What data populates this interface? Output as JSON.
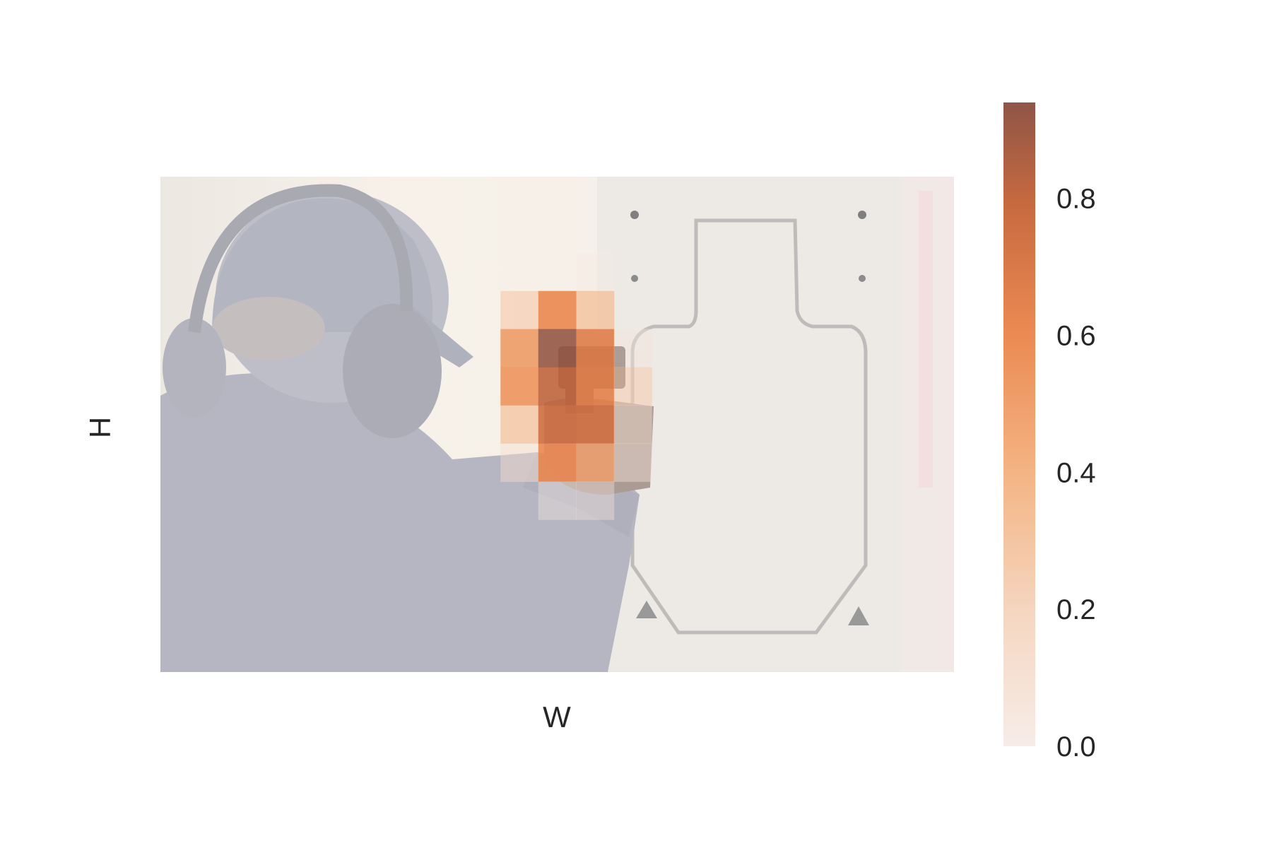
{
  "chart_data": {
    "type": "heatmap",
    "title": "",
    "xlabel": "W",
    "ylabel": "H",
    "grid": false,
    "legend": "none",
    "background": "photo: person with ear protection aiming a handgun at a paper target (dimmed underlay)",
    "grid_shape": [
      13,
      21
    ],
    "cells": [
      {
        "row": 2,
        "col": 11,
        "value": 0.02
      },
      {
        "row": 3,
        "col": 9,
        "value": 0.24
      },
      {
        "row": 3,
        "col": 10,
        "value": 0.55
      },
      {
        "row": 3,
        "col": 11,
        "value": 0.32
      },
      {
        "row": 4,
        "col": 9,
        "value": 0.48
      },
      {
        "row": 4,
        "col": 10,
        "value": 0.92
      },
      {
        "row": 4,
        "col": 11,
        "value": 0.62
      },
      {
        "row": 4,
        "col": 12,
        "value": 0.06
      },
      {
        "row": 5,
        "col": 9,
        "value": 0.5
      },
      {
        "row": 5,
        "col": 10,
        "value": 0.78
      },
      {
        "row": 5,
        "col": 11,
        "value": 0.6
      },
      {
        "row": 5,
        "col": 12,
        "value": 0.22
      },
      {
        "row": 6,
        "col": 9,
        "value": 0.3
      },
      {
        "row": 6,
        "col": 10,
        "value": 0.72
      },
      {
        "row": 6,
        "col": 11,
        "value": 0.7
      },
      {
        "row": 6,
        "col": 12,
        "value": 0.1
      },
      {
        "row": 7,
        "col": 9,
        "value": 0.1
      },
      {
        "row": 7,
        "col": 10,
        "value": 0.55
      },
      {
        "row": 7,
        "col": 11,
        "value": 0.45
      },
      {
        "row": 7,
        "col": 12,
        "value": 0.06
      },
      {
        "row": 8,
        "col": 10,
        "value": 0.03
      },
      {
        "row": 8,
        "col": 11,
        "value": 0.04
      }
    ],
    "colorbar": {
      "range": [
        0,
        0.94
      ],
      "ticks": [
        "0.0",
        "0.2",
        "0.4",
        "0.6",
        "0.8"
      ],
      "colors": [
        "#f7ece8",
        "#f5d2b9",
        "#f4b07e",
        "#e9844c",
        "#c8683d",
        "#8f5546"
      ]
    }
  }
}
